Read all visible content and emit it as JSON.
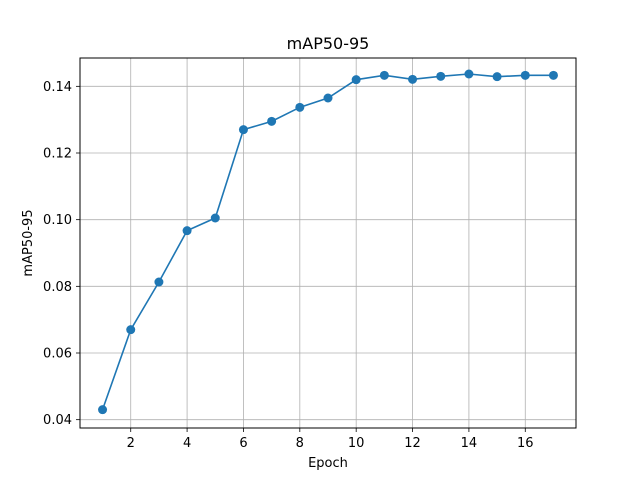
{
  "chart_data": {
    "type": "line",
    "title": "mAP50-95",
    "xlabel": "Epoch",
    "ylabel": "mAP50-95",
    "xlim": [
      0.2,
      17.8
    ],
    "ylim": [
      0.0375,
      0.1485
    ],
    "xticks": [
      2,
      4,
      6,
      8,
      10,
      12,
      14,
      16
    ],
    "xtick_labels": [
      "2",
      "4",
      "6",
      "8",
      "10",
      "12",
      "14",
      "16"
    ],
    "yticks": [
      0.04,
      0.06,
      0.08,
      0.1,
      0.12,
      0.14
    ],
    "ytick_labels": [
      "0.04",
      "0.06",
      "0.08",
      "0.10",
      "0.12",
      "0.14"
    ],
    "grid": true,
    "color": "#1f77b4",
    "x": [
      1,
      2,
      3,
      4,
      5,
      6,
      7,
      8,
      9,
      10,
      11,
      12,
      13,
      14,
      15,
      16,
      17
    ],
    "y": [
      0.043,
      0.067,
      0.0813,
      0.0967,
      0.1005,
      0.127,
      0.1295,
      0.1337,
      0.1365,
      0.142,
      0.1433,
      0.1421,
      0.143,
      0.1437,
      0.1429,
      0.1433,
      0.1433
    ]
  }
}
